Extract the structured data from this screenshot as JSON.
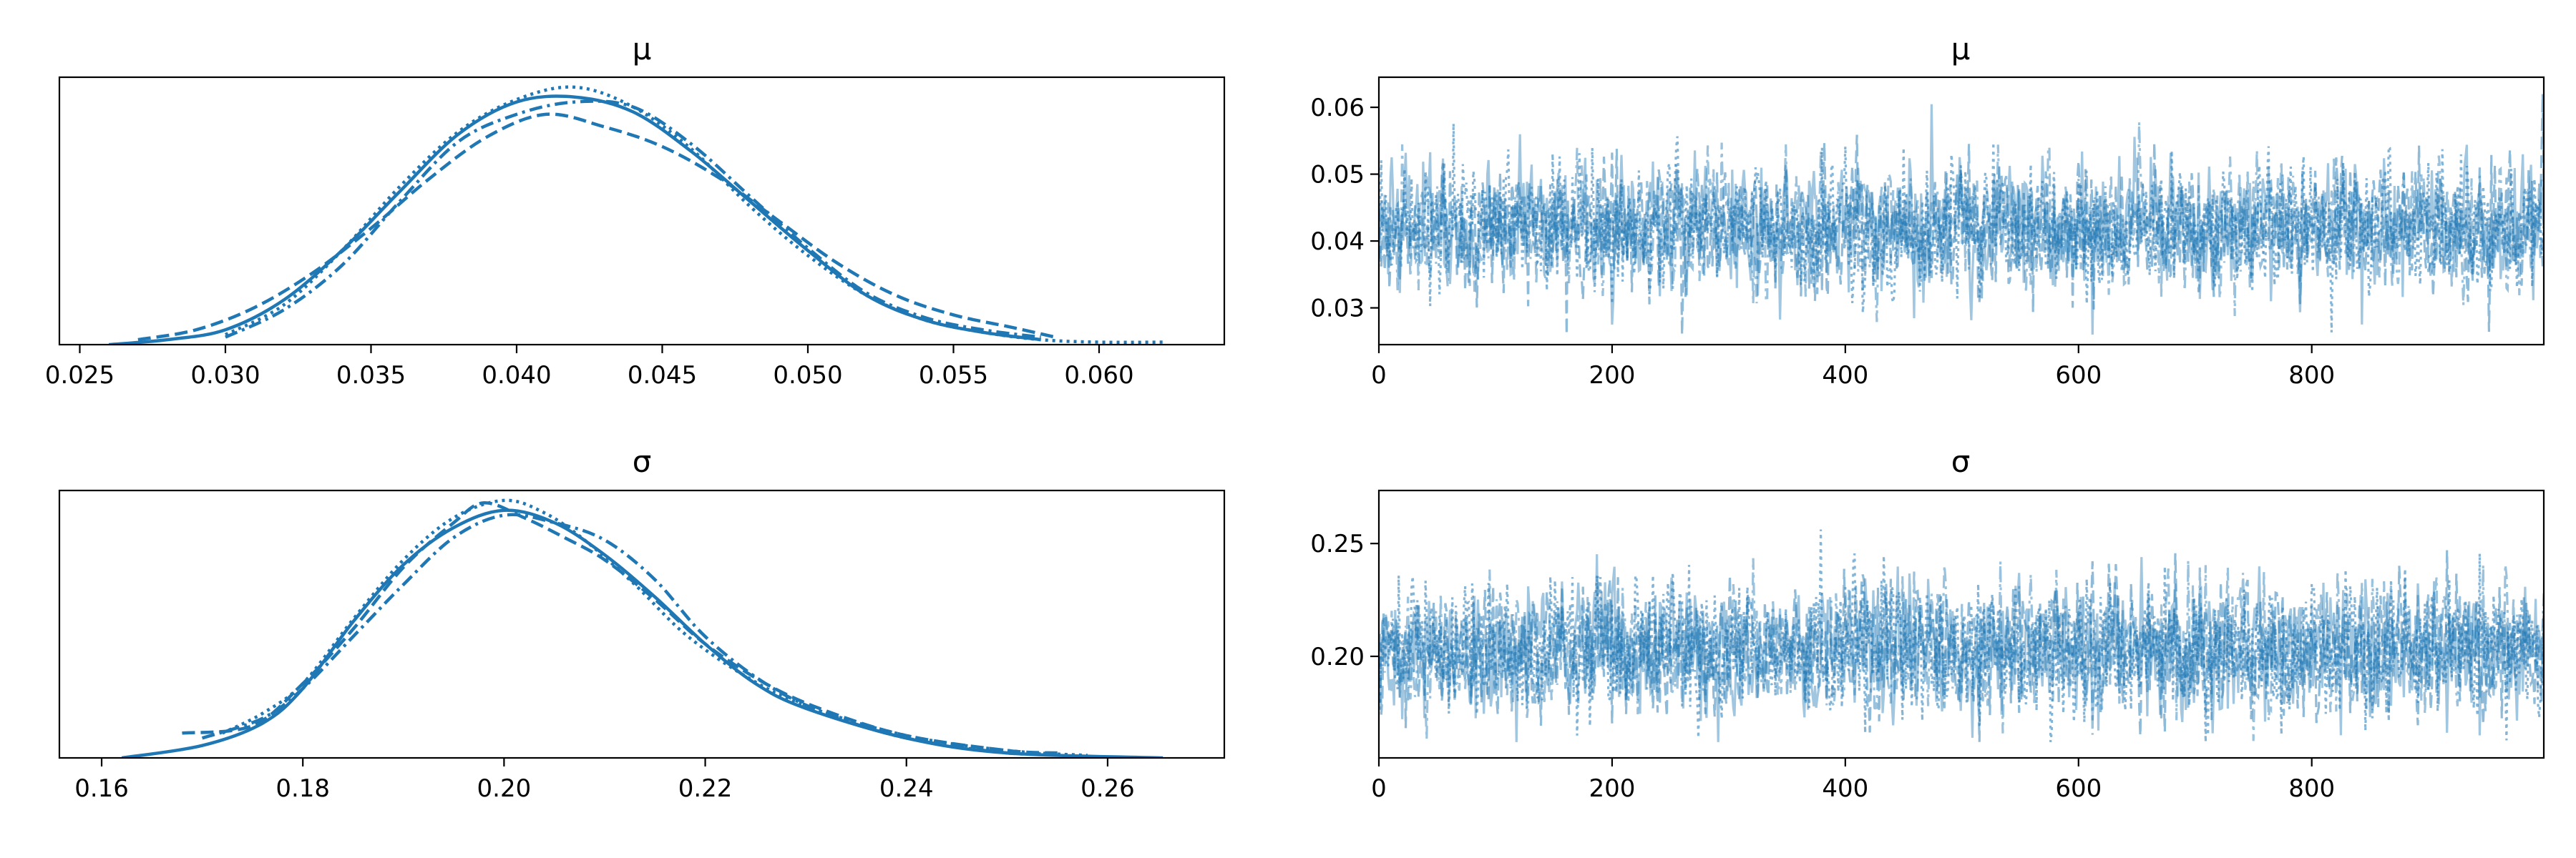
{
  "colors": {
    "series": "#1f77b4",
    "frame": "#000000",
    "background": "#ffffff"
  },
  "chart_data": [
    {
      "type": "line",
      "kind": "density",
      "title": "μ",
      "xlim": [
        0.0243,
        0.0643
      ],
      "ylim": [
        0,
        1.08
      ],
      "x_ticks": [
        "0.025",
        "0.030",
        "0.035",
        "0.040",
        "0.045",
        "0.050",
        "0.055",
        "0.060"
      ],
      "y_ticks": [],
      "series": [
        {
          "line_style": "solid",
          "x": [
            0.026,
            0.028,
            0.03,
            0.032,
            0.034,
            0.036,
            0.038,
            0.04,
            0.042,
            0.044,
            0.046,
            0.048,
            0.05,
            0.052,
            0.054,
            0.056,
            0.058
          ],
          "y": [
            0.0,
            0.02,
            0.06,
            0.18,
            0.38,
            0.62,
            0.85,
            0.98,
            1.0,
            0.94,
            0.78,
            0.58,
            0.38,
            0.2,
            0.1,
            0.05,
            0.02
          ]
        },
        {
          "line_style": "dashed",
          "x": [
            0.027,
            0.029,
            0.031,
            0.033,
            0.035,
            0.037,
            0.039,
            0.041,
            0.043,
            0.045,
            0.047,
            0.049,
            0.051,
            0.053,
            0.055,
            0.057,
            0.0585
          ],
          "y": [
            0.02,
            0.06,
            0.15,
            0.29,
            0.47,
            0.67,
            0.84,
            0.93,
            0.88,
            0.8,
            0.67,
            0.5,
            0.33,
            0.2,
            0.12,
            0.07,
            0.03
          ]
        },
        {
          "line_style": "dashdot",
          "x": [
            0.03,
            0.032,
            0.034,
            0.036,
            0.038,
            0.04,
            0.042,
            0.044,
            0.046,
            0.048,
            0.05,
            0.052,
            0.054,
            0.056,
            0.058
          ],
          "y": [
            0.03,
            0.14,
            0.32,
            0.58,
            0.82,
            0.93,
            0.98,
            0.96,
            0.81,
            0.6,
            0.39,
            0.21,
            0.11,
            0.06,
            0.03
          ]
        },
        {
          "line_style": "dotted",
          "x": [
            0.03,
            0.032,
            0.034,
            0.036,
            0.038,
            0.04,
            0.042,
            0.044,
            0.046,
            0.048,
            0.05,
            0.052,
            0.054,
            0.056,
            0.058,
            0.06,
            0.0623
          ],
          "y": [
            0.04,
            0.16,
            0.38,
            0.64,
            0.86,
            0.99,
            1.04,
            0.96,
            0.79,
            0.56,
            0.36,
            0.2,
            0.1,
            0.05,
            0.02,
            0.01,
            0.01
          ]
        }
      ]
    },
    {
      "type": "line",
      "kind": "trace",
      "title": "μ",
      "xlim": [
        0,
        999
      ],
      "ylim": [
        0.0245,
        0.0645
      ],
      "x_ticks": [
        "0",
        "200",
        "400",
        "600",
        "800"
      ],
      "y_ticks": [
        "0.03",
        "0.04",
        "0.05",
        "0.06"
      ],
      "draws": 1000,
      "center": 0.042,
      "spread": 0.0047,
      "trace_range": [
        0.026,
        0.062
      ],
      "series": [
        {
          "line_style": "solid"
        },
        {
          "line_style": "dashed"
        },
        {
          "line_style": "dashdot"
        },
        {
          "line_style": "dotted"
        }
      ]
    },
    {
      "type": "line",
      "kind": "density",
      "title": "σ",
      "xlim": [
        0.1558,
        0.2716
      ],
      "ylim": [
        0,
        1.08
      ],
      "x_ticks": [
        "0.16",
        "0.18",
        "0.20",
        "0.22",
        "0.24",
        "0.26"
      ],
      "y_ticks": [],
      "series": [
        {
          "line_style": "solid",
          "x": [
            0.162,
            0.17,
            0.176,
            0.18,
            0.185,
            0.19,
            0.195,
            0.2,
            0.205,
            0.21,
            0.215,
            0.22,
            0.225,
            0.23,
            0.24,
            0.25,
            0.2655
          ],
          "y": [
            0.0,
            0.05,
            0.14,
            0.28,
            0.55,
            0.78,
            0.93,
            1.0,
            0.95,
            0.82,
            0.65,
            0.46,
            0.3,
            0.2,
            0.08,
            0.02,
            0.0
          ]
        },
        {
          "line_style": "dashed",
          "x": [
            0.168,
            0.175,
            0.18,
            0.185,
            0.19,
            0.195,
            0.198,
            0.202,
            0.206,
            0.21,
            0.215,
            0.22,
            0.226,
            0.232,
            0.24,
            0.25,
            0.255
          ],
          "y": [
            0.1,
            0.13,
            0.3,
            0.52,
            0.77,
            0.95,
            1.03,
            0.97,
            0.89,
            0.8,
            0.64,
            0.46,
            0.3,
            0.19,
            0.09,
            0.03,
            0.02
          ]
        },
        {
          "line_style": "dashdot",
          "x": [
            0.17,
            0.176,
            0.18,
            0.185,
            0.19,
            0.195,
            0.2,
            0.205,
            0.21,
            0.215,
            0.22,
            0.226,
            0.232,
            0.24,
            0.25,
            0.255
          ],
          "y": [
            0.08,
            0.16,
            0.28,
            0.49,
            0.7,
            0.89,
            0.98,
            0.95,
            0.88,
            0.72,
            0.49,
            0.3,
            0.18,
            0.08,
            0.02,
            0.02
          ]
        },
        {
          "line_style": "dotted",
          "x": [
            0.172,
            0.176,
            0.18,
            0.185,
            0.19,
            0.195,
            0.2,
            0.204,
            0.208,
            0.213,
            0.218,
            0.224,
            0.23,
            0.24,
            0.25,
            0.258
          ],
          "y": [
            0.1,
            0.18,
            0.3,
            0.56,
            0.8,
            0.97,
            1.04,
            0.99,
            0.88,
            0.7,
            0.5,
            0.33,
            0.21,
            0.09,
            0.03,
            0.01
          ]
        }
      ]
    },
    {
      "type": "line",
      "kind": "trace",
      "title": "σ",
      "xlim": [
        0,
        999
      ],
      "ylim": [
        0.155,
        0.2735
      ],
      "x_ticks": [
        "0",
        "200",
        "400",
        "600",
        "800"
      ],
      "y_ticks": [
        "0.20",
        "0.25"
      ],
      "draws": 1000,
      "center": 0.203,
      "spread": 0.0145,
      "trace_range": [
        0.162,
        0.266
      ],
      "series": [
        {
          "line_style": "solid"
        },
        {
          "line_style": "dashed"
        },
        {
          "line_style": "dashdot"
        },
        {
          "line_style": "dotted"
        }
      ]
    }
  ]
}
